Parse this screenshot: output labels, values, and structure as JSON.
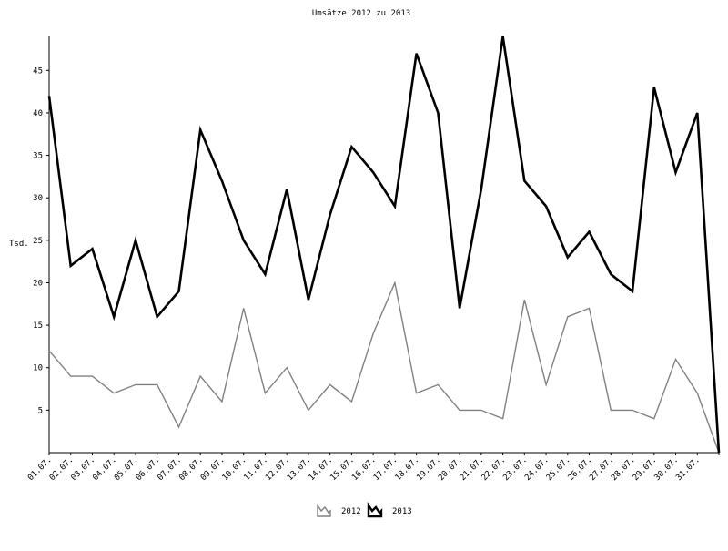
{
  "chart_data": {
    "type": "line",
    "title": "Umsätze 2012 zu 2013",
    "xlabel": "",
    "ylabel": "Tsd.",
    "ylim": [
      0,
      49
    ],
    "yticks": [
      5,
      10,
      15,
      20,
      25,
      30,
      35,
      40,
      45
    ],
    "categories": [
      "01.07.",
      "02.07.",
      "03.07.",
      "04.07.",
      "05.07.",
      "06.07.",
      "07.07.",
      "08.07.",
      "09.07.",
      "10.07.",
      "11.07.",
      "12.07.",
      "13.07.",
      "14.07.",
      "15.07.",
      "16.07.",
      "17.07.",
      "18.07.",
      "19.07.",
      "20.07.",
      "21.07.",
      "22.07.",
      "23.07.",
      "24.07.",
      "25.07.",
      "26.07.",
      "27.07.",
      "28.07.",
      "29.07.",
      "30.07.",
      "31.07.",
      ""
    ],
    "series": [
      {
        "name": "2012",
        "color": "#808080",
        "values": [
          12,
          9,
          9,
          7,
          8,
          8,
          3,
          9,
          6,
          17,
          7,
          10,
          5,
          8,
          6,
          14,
          20,
          7,
          8,
          5,
          5,
          4,
          18,
          8,
          16,
          17,
          5,
          5,
          4,
          11,
          7,
          0
        ]
      },
      {
        "name": "2013",
        "color": "#000000",
        "values": [
          42,
          22,
          24,
          16,
          25,
          16,
          19,
          38,
          32,
          25,
          21,
          31,
          18,
          28,
          36,
          33,
          29,
          47,
          40,
          17,
          31,
          49,
          32,
          29,
          23,
          26,
          21,
          19,
          43,
          33,
          40,
          0
        ]
      }
    ],
    "legend_position": "bottom-center",
    "grid": false
  }
}
